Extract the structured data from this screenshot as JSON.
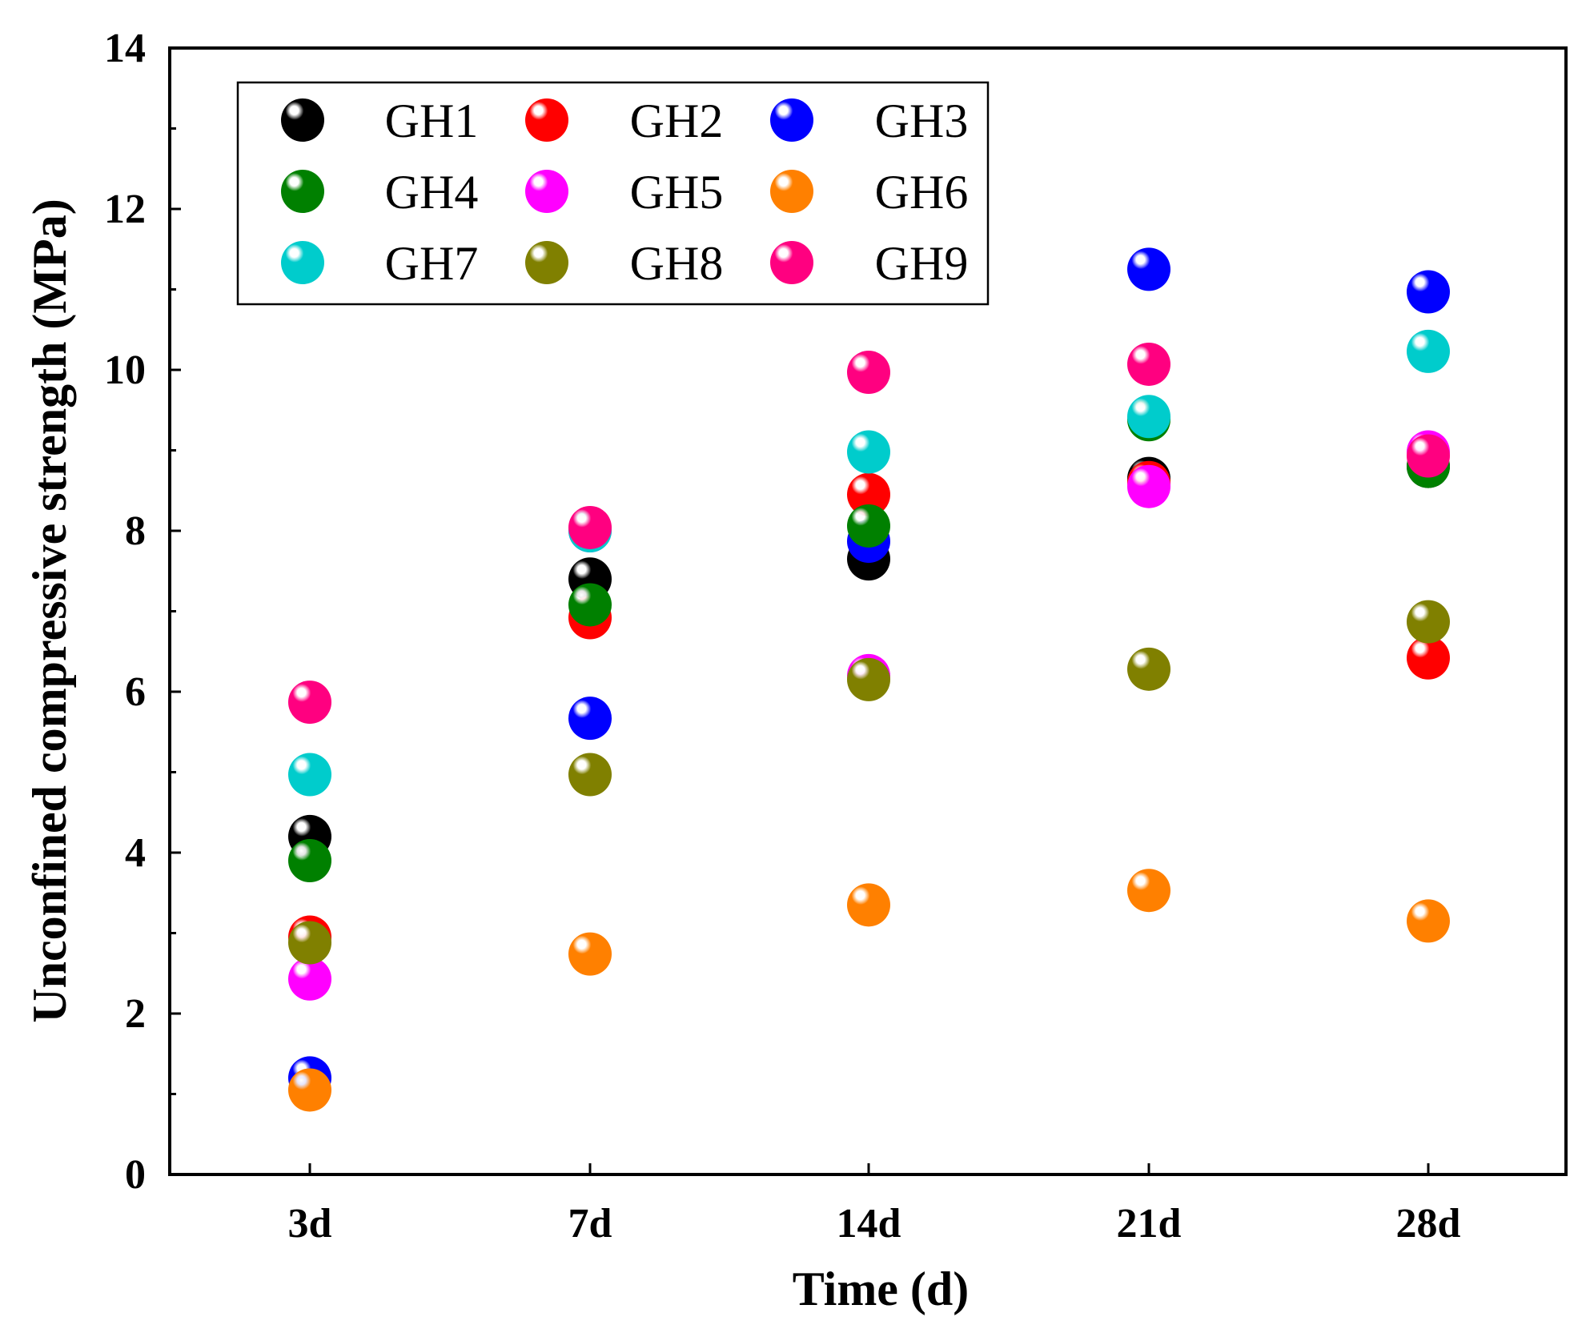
{
  "chart_data": {
    "type": "scatter",
    "title": "",
    "xlabel": "Time (d)",
    "ylabel": "Unconfined compressive strength (MPa)",
    "categories": [
      "3d",
      "7d",
      "14d",
      "21d",
      "28d"
    ],
    "ylim": [
      0,
      14
    ],
    "yticks": [
      "0",
      "2",
      "4",
      "6",
      "8",
      "10",
      "12",
      "14"
    ],
    "legend_position": "top-left",
    "series": [
      {
        "name": "GH1",
        "color": "#000000",
        "values": [
          4.2,
          7.4,
          7.65,
          8.65,
          8.8
        ]
      },
      {
        "name": "GH2",
        "color": "#ff0000",
        "values": [
          2.95,
          6.92,
          8.45,
          8.6,
          6.42
        ]
      },
      {
        "name": "GH3",
        "color": "#0000ff",
        "values": [
          1.2,
          5.67,
          7.87,
          11.25,
          10.97
        ]
      },
      {
        "name": "GH4",
        "color": "#008000",
        "values": [
          3.9,
          7.08,
          8.06,
          9.38,
          8.8
        ]
      },
      {
        "name": "GH5",
        "color": "#ff00ff",
        "values": [
          2.43,
          8.0,
          6.2,
          8.55,
          8.98
        ]
      },
      {
        "name": "GH6",
        "color": "#ff8000",
        "values": [
          1.05,
          2.74,
          3.35,
          3.53,
          3.15
        ]
      },
      {
        "name": "GH7",
        "color": "#00cccc",
        "values": [
          4.97,
          8.0,
          8.98,
          9.42,
          10.23
        ]
      },
      {
        "name": "GH8",
        "color": "#808000",
        "values": [
          2.88,
          4.97,
          6.15,
          6.28,
          6.87
        ]
      },
      {
        "name": "GH9",
        "color": "#ff0080",
        "values": [
          5.87,
          8.04,
          9.97,
          10.07,
          8.93
        ]
      }
    ]
  }
}
